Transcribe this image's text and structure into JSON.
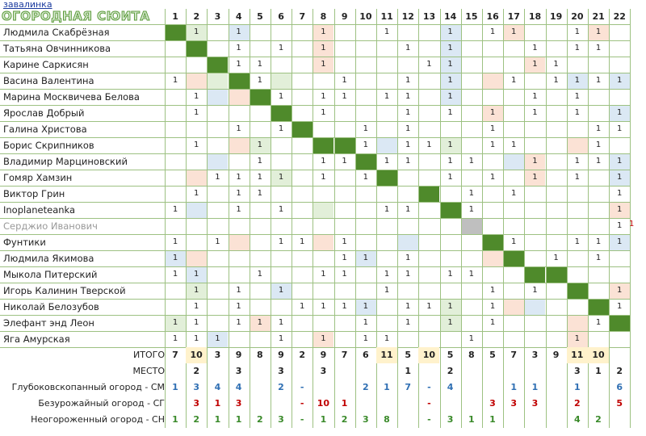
{
  "link_text": "завалинка",
  "title": "ОГОРОДНАЯ СЮИТА",
  "columns": [
    "1",
    "2",
    "3",
    "4",
    "5",
    "6",
    "7",
    "8",
    "9",
    "10",
    "11",
    "12",
    "13",
    "14",
    "15",
    "16",
    "17",
    "18",
    "19",
    "20",
    "21",
    "22"
  ],
  "names": [
    "Людмила Скабрёзная",
    "Татьяна Овчинникова",
    "Карине Саркисян",
    "Васина Валентина",
    "Марина Москвичева Белова",
    "Ярослав Добрый",
    "Галина Христова",
    "Борис Скрипников",
    "Владимир Марциновский",
    "Гомяр Хамзин",
    "Виктор Грин",
    "Inoplaneteanka",
    "Серджио Иванович",
    "Фунтики",
    "Людмила Якимова",
    "Мыкола Питерский",
    "Игорь Калинин Тверской",
    "Николай Белозубов",
    "Элефант энд Леон",
    "Яга Амурская"
  ],
  "grid": [
    [
      "D",
      "1g",
      "",
      "1b",
      "",
      "",
      "",
      "1p",
      "",
      "",
      "1",
      "",
      "",
      "1b",
      "",
      "1",
      "1p",
      "",
      "",
      "1",
      "1p",
      ""
    ],
    [
      "",
      "D",
      "",
      "1",
      "",
      "1",
      "",
      "1p",
      "",
      "",
      "",
      "1",
      "",
      "1b",
      "",
      "",
      "",
      "1",
      "",
      "1",
      "1",
      ""
    ],
    [
      "",
      "",
      "D",
      "1",
      "1",
      "",
      "",
      "1p",
      "",
      "",
      "",
      "",
      "1",
      "1b",
      "",
      "",
      "",
      "1p",
      "1",
      "",
      "",
      ""
    ],
    [
      "1",
      "p",
      "g",
      "D",
      "1",
      "g",
      "",
      "",
      "1",
      "",
      "",
      "1",
      "",
      "1b",
      "",
      "p",
      "1",
      "",
      "1",
      "1b",
      "1",
      "1b"
    ],
    [
      "",
      "1",
      "b",
      "p",
      "D",
      "1",
      "",
      "1",
      "1",
      "",
      "1",
      "1",
      "",
      "1b",
      "",
      "",
      "",
      "1",
      "",
      "1",
      "",
      ""
    ],
    [
      "",
      "1",
      "",
      "",
      "",
      "D",
      "",
      "1",
      "",
      "",
      "",
      "1",
      "",
      "1",
      "",
      "1p",
      "",
      "1",
      "",
      "1",
      "",
      "1b"
    ],
    [
      "",
      "",
      "",
      "1",
      "",
      "1",
      "D",
      "",
      "",
      "1",
      "",
      "1",
      "",
      "",
      "",
      "1",
      "",
      "",
      "",
      "",
      "1",
      "1"
    ],
    [
      "",
      "1",
      "",
      "p",
      "1g",
      "",
      "",
      "D",
      "D",
      "1",
      "b",
      "1",
      "1",
      "1g",
      "",
      "1",
      "1",
      "",
      "",
      "p",
      "1",
      ""
    ],
    [
      "",
      "",
      "b",
      "",
      "1",
      "",
      "",
      "1",
      "1",
      "D",
      "1",
      "1",
      "",
      "1",
      "1",
      "",
      "b",
      "1p",
      "",
      "1",
      "1",
      "1b"
    ],
    [
      "",
      "p",
      "1",
      "1",
      "1",
      "1g",
      "",
      "1",
      "",
      "1",
      "D",
      "",
      "",
      "1",
      "",
      "1",
      "",
      "1p",
      "",
      "1",
      "",
      "1b"
    ],
    [
      "",
      "1",
      "",
      "1",
      "1",
      "",
      "",
      "",
      "",
      "",
      "",
      "",
      "D",
      "",
      "1",
      "",
      "1",
      "",
      "",
      "",
      "",
      "1"
    ],
    [
      "1",
      "b",
      "",
      "1",
      "",
      "1",
      "",
      "g",
      "",
      "",
      "1",
      "1",
      "",
      "D",
      "1",
      "",
      "",
      "",
      "",
      "",
      "",
      "1p"
    ],
    [
      "",
      "",
      "",
      "",
      "",
      "",
      "",
      "",
      "",
      "",
      "",
      "",
      "",
      "",
      "X",
      "",
      "",
      "",
      "",
      "",
      "",
      "1"
    ],
    [
      "1",
      "",
      "1",
      "p",
      "",
      "1",
      "1",
      "p",
      "1",
      "",
      "",
      "b",
      "",
      "",
      "",
      "D",
      "1",
      "",
      "",
      "1",
      "1",
      "1b"
    ],
    [
      "1b",
      "p",
      "",
      "",
      "",
      "",
      "",
      "",
      "1",
      "1b",
      "",
      "1",
      "",
      "",
      "",
      "p",
      "D",
      "",
      "1",
      "",
      "1",
      ""
    ],
    [
      "1",
      "1b",
      "",
      "",
      "1",
      "",
      "",
      "1",
      "1",
      "",
      "1",
      "1",
      "",
      "1",
      "1",
      "",
      "",
      "D",
      "D",
      "",
      "",
      ""
    ],
    [
      "",
      "1g",
      "",
      "1",
      "",
      "1b",
      "",
      "",
      "",
      "",
      "1",
      "",
      "",
      "",
      "",
      "1",
      "",
      "1",
      "",
      "D",
      "",
      "1p"
    ],
    [
      "",
      "1",
      "",
      "1",
      "",
      "",
      "1",
      "1",
      "1",
      "1b",
      "",
      "1",
      "1",
      "1g",
      "",
      "1",
      "p",
      "b",
      "",
      "",
      "D",
      "1"
    ],
    [
      "1g",
      "1",
      "",
      "1",
      "1p",
      "1",
      "",
      "",
      "",
      "1",
      "",
      "1",
      "",
      "1g",
      "",
      "1",
      "",
      "",
      "",
      "p",
      "1",
      "D"
    ],
    [
      "1",
      "1",
      "1b",
      "",
      "",
      "1",
      "",
      "1p",
      "",
      "1",
      "1",
      "",
      "",
      "",
      "1",
      "",
      "",
      "",
      "",
      "1p",
      "",
      ""
    ]
  ],
  "summary": {
    "itogo_label": "ИТОГО",
    "itogo": [
      "7",
      "10",
      "3",
      "9",
      "8",
      "9",
      "2",
      "9",
      "7",
      "6",
      "11",
      "5",
      "10",
      "5",
      "8",
      "5",
      "7",
      "3",
      "9",
      "11",
      "10",
      ""
    ],
    "mesto_label": "МЕСТО",
    "mesto": [
      "",
      "2",
      "",
      "3",
      "",
      "3",
      "",
      "3",
      "",
      "",
      "",
      "1",
      "",
      "2",
      "",
      "",
      "",
      "",
      "",
      "3",
      "1",
      "2"
    ],
    "sm_label": "Глубоковскопанный огород - СМ",
    "sm": [
      "1",
      "3",
      "4",
      "4",
      "",
      "2",
      "-",
      "",
      "",
      "2",
      "1",
      "7",
      "-",
      "4",
      "",
      "",
      "1",
      "1",
      "",
      "1",
      "",
      "6"
    ],
    "sg_label": "Безурожайный огород - СГ",
    "sg": [
      "",
      "3",
      "1",
      "3",
      "",
      "",
      "-",
      "10",
      "1",
      "",
      "",
      "",
      "-",
      "",
      "",
      "3",
      "3",
      "3",
      "",
      "2",
      "",
      "5"
    ],
    "sn_label": "Неогороженный огород - СН",
    "sn": [
      "1",
      "2",
      "1",
      "1",
      "2",
      "3",
      "-",
      "1",
      "2",
      "3",
      "8",
      "",
      "-",
      "3",
      "1",
      "1",
      "",
      "",
      "",
      "4",
      "2",
      ""
    ]
  },
  "side_mark": "1"
}
